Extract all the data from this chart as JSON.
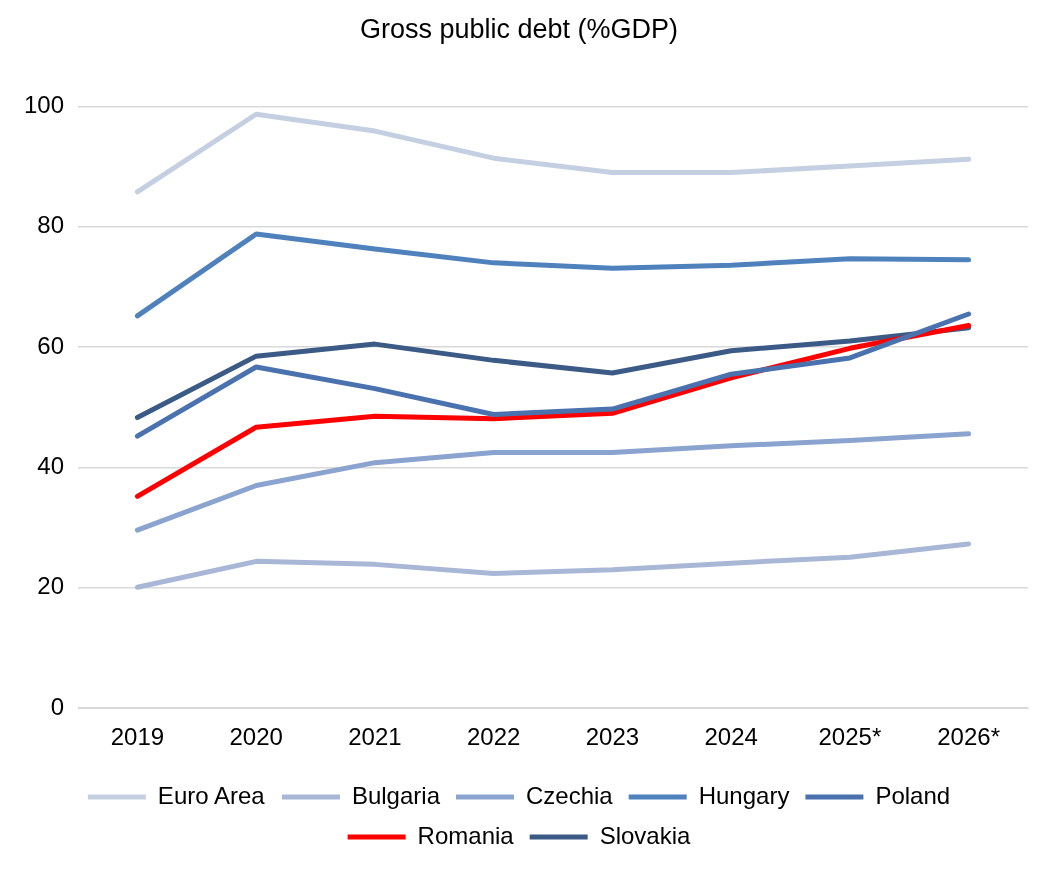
{
  "chart_data": {
    "type": "line",
    "title": "Gross public debt (%GDP)",
    "categories": [
      "2019",
      "2020",
      "2021",
      "2022",
      "2023",
      "2024",
      "2025*",
      "2026*"
    ],
    "series": [
      {
        "name": "Euro Area",
        "color": "#c5cfe2",
        "values": [
          85.8,
          98.7,
          95.9,
          91.4,
          89.0,
          89.0,
          90.1,
          91.2
        ]
      },
      {
        "name": "Bulgaria",
        "color": "#a9b7d6",
        "values": [
          20.1,
          24.4,
          23.9,
          22.4,
          23.0,
          24.1,
          25.1,
          27.3
        ]
      },
      {
        "name": "Czechia",
        "color": "#8ba3cf",
        "values": [
          29.6,
          37.0,
          40.8,
          42.5,
          42.5,
          43.6,
          44.5,
          45.6
        ]
      },
      {
        "name": "Hungary",
        "color": "#4f81bd",
        "values": [
          65.2,
          78.8,
          76.3,
          74.0,
          73.1,
          73.6,
          74.7,
          74.5
        ]
      },
      {
        "name": "Poland",
        "color": "#4a72ae",
        "values": [
          45.2,
          56.7,
          53.1,
          48.8,
          49.7,
          55.5,
          58.2,
          65.5
        ]
      },
      {
        "name": "Romania",
        "color": "#ff0000",
        "values": [
          35.2,
          46.7,
          48.5,
          48.1,
          49.0,
          54.9,
          59.8,
          63.6
        ]
      },
      {
        "name": "Slovakia",
        "color": "#3b5a86",
        "values": [
          48.3,
          58.5,
          60.5,
          57.8,
          55.7,
          59.4,
          61.0,
          63.2
        ]
      }
    ],
    "ylim": [
      0,
      100
    ],
    "yticks": [
      0,
      20,
      40,
      60,
      80,
      100
    ],
    "grid": "y",
    "legend": "bottom",
    "marker": "none",
    "line_style": "solid"
  }
}
